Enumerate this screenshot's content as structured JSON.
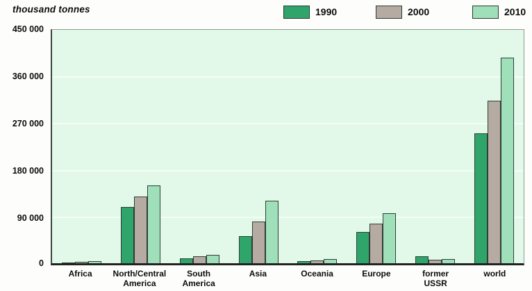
{
  "chart_data": {
    "type": "bar",
    "title": "thousand tonnes",
    "unit_label": "thousand tonnes",
    "categories": [
      {
        "id": "africa",
        "label_lines": [
          "Africa"
        ]
      },
      {
        "id": "north-central-america",
        "label_lines": [
          "North/Central",
          "America"
        ]
      },
      {
        "id": "south-america",
        "label_lines": [
          "South",
          "America"
        ]
      },
      {
        "id": "asia",
        "label_lines": [
          "Asia"
        ]
      },
      {
        "id": "oceania",
        "label_lines": [
          "Oceania"
        ]
      },
      {
        "id": "europe",
        "label_lines": [
          "Europe"
        ]
      },
      {
        "id": "former-ussr",
        "label_lines": [
          "former",
          "USSR"
        ]
      },
      {
        "id": "world",
        "label_lines": [
          "world"
        ]
      }
    ],
    "series": [
      {
        "name": "1990",
        "color": "#2fa56b",
        "values": [
          2000,
          109000,
          10000,
          52000,
          4000,
          60000,
          13000,
          250000
        ]
      },
      {
        "name": "2000",
        "color": "#b5aba2",
        "values": [
          3000,
          129000,
          14000,
          80000,
          6000,
          77000,
          7000,
          314000
        ]
      },
      {
        "name": "2010",
        "color": "#9fe0ba",
        "values": [
          4000,
          150000,
          16000,
          121000,
          8000,
          96000,
          8000,
          396000
        ]
      }
    ],
    "ylim": [
      0,
      450000
    ],
    "ytick_labels": [
      "450 000",
      "360 000",
      "270 000",
      "180 000",
      "90 000",
      "0"
    ],
    "grid": true,
    "gridline_color": "#f4fdf6",
    "plot_background": "#e2f8e9",
    "legend_position": "top"
  }
}
